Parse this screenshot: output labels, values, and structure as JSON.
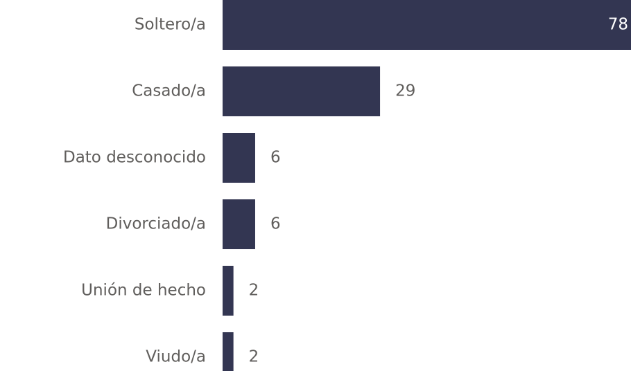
{
  "chart_data": {
    "type": "barh",
    "categories": [
      "Soltero/a",
      "Casado/a",
      "Dato desconocido",
      "Divorciado/a",
      "Unión de hecho",
      "Viudo/a"
    ],
    "values": [
      78,
      29,
      6,
      6,
      2,
      2
    ],
    "color": "#333652"
  }
}
